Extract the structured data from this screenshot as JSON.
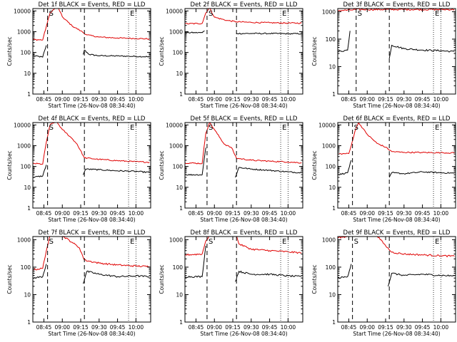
{
  "colors": {
    "events": "#000000",
    "lld": "#e00000",
    "axis": "#000000",
    "background": "#ffffff"
  },
  "markers": {
    "start_label": "S",
    "end_label": "E"
  },
  "chart_data": [
    {
      "type": "line",
      "title": "Det 1f BLACK = Events, RED = LLD",
      "xlabel": "Start Time (26-Nov-08 08:34:40)",
      "ylabel": "Counts/sec",
      "yscale": "log",
      "ylim": [
        1,
        13000
      ],
      "xlim": [
        "08:36",
        "10:12"
      ],
      "xtick_labels": [
        "08:45",
        "09:00",
        "09:15",
        "09:30",
        "09:45",
        "10:00"
      ],
      "ytick_labels": [
        "1",
        "10",
        "100",
        "1000",
        "10000"
      ],
      "vlines_dashed": [
        "08:48",
        "09:18"
      ],
      "vlines_dotted": [
        "09:54",
        "10:00"
      ],
      "series": [
        {
          "name": "Events",
          "x": [
            "08:36",
            "08:44",
            "08:47",
            "08:47",
            "09:17",
            "09:17",
            "09:18",
            "09:22",
            "09:30",
            "09:45",
            "10:00",
            "10:11"
          ],
          "y": [
            70,
            60,
            220,
            null,
            null,
            80,
            130,
            80,
            70,
            68,
            65,
            62
          ]
        },
        {
          "name": "LLD",
          "x": [
            "08:36",
            "08:44",
            "08:47",
            "08:50",
            "08:55",
            "08:57",
            "09:00",
            "09:08",
            "09:15",
            "09:20",
            "09:30",
            "09:45",
            "10:00",
            "10:11"
          ],
          "y": [
            420,
            400,
            1800,
            8000,
            15000,
            13000,
            5200,
            1900,
            1100,
            700,
            550,
            500,
            470,
            450
          ]
        }
      ]
    },
    {
      "type": "line",
      "title": "Det 2f BLACK = Events, RED = LLD",
      "xlabel": "Start Time (26-Nov-08 08:34:40)",
      "ylabel": "Counts/sec",
      "yscale": "log",
      "ylim": [
        1,
        13000
      ],
      "xlim": [
        "08:36",
        "10:12"
      ],
      "xtick_labels": [
        "08:45",
        "09:00",
        "09:15",
        "09:30",
        "09:45",
        "10:00"
      ],
      "ytick_labels": [
        "1",
        "10",
        "100",
        "1000",
        "10000"
      ],
      "vlines_dashed": [
        "08:54",
        "09:18"
      ],
      "vlines_dotted": [
        "09:54",
        "10:00"
      ],
      "series": [
        {
          "name": "Events",
          "x": [
            "08:36",
            "08:50",
            "08:52",
            "08:52",
            "09:18",
            "09:18",
            "09:30",
            "09:45",
            "10:00",
            "10:11"
          ],
          "y": [
            900,
            900,
            1100,
            null,
            null,
            820,
            820,
            820,
            800,
            800
          ]
        },
        {
          "name": "LLD",
          "x": [
            "08:36",
            "08:50",
            "08:53",
            "08:56",
            "09:00",
            "09:10",
            "09:18",
            "09:30",
            "09:45",
            "10:00",
            "10:11"
          ],
          "y": [
            2400,
            2500,
            8000,
            14000,
            5000,
            3500,
            3000,
            2800,
            2700,
            2600,
            2600
          ]
        }
      ]
    },
    {
      "type": "line",
      "title": "Det 3f BLACK = Events, RED = LLD",
      "xlabel": "Start Time (26-Nov-08 08:34:40)",
      "ylabel": "Counts/sec",
      "yscale": "log",
      "ylim": [
        1,
        1300
      ],
      "xlim": [
        "08:36",
        "10:12"
      ],
      "xtick_labels": [
        "08:45",
        "09:00",
        "09:15",
        "09:30",
        "09:45",
        "10:00"
      ],
      "ytick_labels": [
        "1",
        "10",
        "100",
        "1000"
      ],
      "vlines_dashed": [
        "08:51",
        "09:18"
      ],
      "vlines_dotted": [
        "09:54",
        "10:00"
      ],
      "series": [
        {
          "name": "Events",
          "x": [
            "08:36",
            "08:44",
            "08:46",
            "08:46",
            "09:18",
            "09:18",
            "09:20",
            "09:30",
            "09:45",
            "10:00",
            "10:11"
          ],
          "y": [
            35,
            40,
            200,
            null,
            null,
            20,
            60,
            45,
            40,
            38,
            35
          ]
        },
        {
          "name": "LLD",
          "x": [
            "08:36",
            "08:47",
            "08:50",
            "09:00",
            "09:30",
            "10:00",
            "10:11"
          ],
          "y": [
            1100,
            1150,
            1200,
            1200,
            1200,
            1200,
            1200
          ]
        }
      ]
    },
    {
      "type": "line",
      "title": "Det 4f BLACK = Events, RED = LLD",
      "xlabel": "Start Time (26-Nov-08 08:34:40)",
      "ylabel": "Counts/sec",
      "yscale": "log",
      "ylim": [
        1,
        13000
      ],
      "xlim": [
        "08:36",
        "10:12"
      ],
      "xtick_labels": [
        "08:45",
        "09:00",
        "09:15",
        "09:30",
        "09:45",
        "10:00"
      ],
      "ytick_labels": [
        "1",
        "10",
        "100",
        "1000",
        "10000"
      ],
      "vlines_dashed": [
        "08:48",
        "09:18"
      ],
      "vlines_dotted": [
        "09:54",
        "10:00"
      ],
      "series": [
        {
          "name": "Events",
          "x": [
            "08:36",
            "08:44",
            "08:47",
            "08:47",
            "09:17",
            "09:17",
            "09:19",
            "09:30",
            "09:45",
            "10:00",
            "10:11"
          ],
          "y": [
            30,
            35,
            120,
            null,
            null,
            40,
            75,
            70,
            62,
            58,
            52
          ]
        },
        {
          "name": "LLD",
          "x": [
            "08:36",
            "08:44",
            "08:47",
            "08:50",
            "08:55",
            "09:00",
            "09:08",
            "09:12",
            "09:18",
            "09:30",
            "09:45",
            "10:00",
            "10:11"
          ],
          "y": [
            140,
            130,
            1500,
            10000,
            15000,
            6000,
            2200,
            1200,
            260,
            220,
            190,
            170,
            160
          ]
        }
      ]
    },
    {
      "type": "line",
      "title": "Det 5f BLACK = Events, RED = LLD",
      "xlabel": "Start Time (26-Nov-08 08:34:40)",
      "ylabel": "Counts/sec",
      "yscale": "log",
      "ylim": [
        1,
        13000
      ],
      "xlim": [
        "08:36",
        "10:12"
      ],
      "xtick_labels": [
        "08:45",
        "09:00",
        "09:15",
        "09:30",
        "09:45",
        "10:00"
      ],
      "ytick_labels": [
        "1",
        "10",
        "100",
        "1000",
        "10000"
      ],
      "vlines_dashed": [
        "08:54",
        "09:18"
      ],
      "vlines_dotted": [
        "09:54",
        "10:00"
      ],
      "series": [
        {
          "name": "Events",
          "x": [
            "08:36",
            "08:50",
            "08:53",
            "08:53",
            "09:17",
            "09:17",
            "09:20",
            "09:30",
            "09:45",
            "10:00",
            "10:11"
          ],
          "y": [
            40,
            40,
            800,
            null,
            null,
            30,
            90,
            75,
            65,
            55,
            50
          ]
        },
        {
          "name": "LLD",
          "x": [
            "08:36",
            "08:50",
            "08:53",
            "08:56",
            "09:00",
            "09:08",
            "09:14",
            "09:18",
            "09:30",
            "09:45",
            "10:00",
            "10:11"
          ],
          "y": [
            150,
            140,
            4000,
            13000,
            6000,
            1200,
            800,
            250,
            200,
            180,
            165,
            150
          ]
        }
      ]
    },
    {
      "type": "line",
      "title": "Det 6f BLACK = Events, RED = LLD",
      "xlabel": "Start Time (26-Nov-08 08:34:40)",
      "ylabel": "Counts/sec",
      "yscale": "log",
      "ylim": [
        1,
        13000
      ],
      "xlim": [
        "08:36",
        "10:12"
      ],
      "xtick_labels": [
        "08:45",
        "09:00",
        "09:15",
        "09:30",
        "09:45",
        "10:00"
      ],
      "ytick_labels": [
        "1",
        "10",
        "100",
        "1000",
        "10000"
      ],
      "vlines_dashed": [
        "08:48",
        "09:18"
      ],
      "vlines_dotted": [
        "09:54",
        "10:00"
      ],
      "series": [
        {
          "name": "Events",
          "x": [
            "08:36",
            "08:44",
            "08:47",
            "08:47",
            "09:18",
            "09:18",
            "09:20",
            "09:30",
            "09:45",
            "10:00",
            "10:11"
          ],
          "y": [
            40,
            50,
            200,
            null,
            null,
            30,
            50,
            45,
            55,
            50,
            48
          ]
        },
        {
          "name": "LLD",
          "x": [
            "08:36",
            "08:45",
            "08:47",
            "08:50",
            "08:53",
            "09:00",
            "09:08",
            "09:15",
            "09:20",
            "09:30",
            "09:45",
            "10:00",
            "10:11"
          ],
          "y": [
            400,
            420,
            1000,
            5000,
            13000,
            3500,
            1300,
            850,
            520,
            480,
            470,
            460,
            450
          ]
        }
      ]
    },
    {
      "type": "line",
      "title": "Det 7f BLACK = Events, RED = LLD",
      "xlabel": "Start Time (26-Nov-08 08:34:40)",
      "ylabel": "Counts/sec",
      "yscale": "log",
      "ylim": [
        1,
        1300
      ],
      "xlim": [
        "08:36",
        "10:12"
      ],
      "xtick_labels": [
        "08:45",
        "09:00",
        "09:15",
        "09:30",
        "09:45",
        "10:00"
      ],
      "ytick_labels": [
        "1",
        "10",
        "100",
        "1000"
      ],
      "vlines_dashed": [
        "08:48",
        "09:18"
      ],
      "vlines_dotted": [
        "09:54",
        "10:00"
      ],
      "series": [
        {
          "name": "Events",
          "x": [
            "08:36",
            "08:44",
            "08:47",
            "08:47",
            "09:17",
            "09:17",
            "09:20",
            "09:30",
            "09:45",
            "10:00",
            "10:11"
          ],
          "y": [
            40,
            45,
            130,
            null,
            null,
            25,
            70,
            55,
            45,
            48,
            45
          ]
        },
        {
          "name": "LLD",
          "x": [
            "08:36",
            "08:44",
            "08:47",
            "08:50",
            "08:55",
            "09:00",
            "09:08",
            "09:14",
            "09:18",
            "09:30",
            "09:45",
            "10:00",
            "10:11"
          ],
          "y": [
            80,
            90,
            400,
            1400,
            1500,
            1400,
            800,
            500,
            180,
            140,
            120,
            110,
            105
          ]
        }
      ]
    },
    {
      "type": "line",
      "title": "Det 8f BLACK = Events, RED = LLD",
      "xlabel": "Start Time (26-Nov-08 08:34:40)",
      "ylabel": "Counts/sec",
      "yscale": "log",
      "ylim": [
        1,
        1300
      ],
      "xlim": [
        "08:36",
        "10:12"
      ],
      "xtick_labels": [
        "08:45",
        "09:00",
        "09:15",
        "09:30",
        "09:45",
        "10:00"
      ],
      "ytick_labels": [
        "1",
        "10",
        "100",
        "1000"
      ],
      "vlines_dashed": [
        "08:54",
        "09:18"
      ],
      "vlines_dotted": [
        "09:54",
        "10:00"
      ],
      "series": [
        {
          "name": "Events",
          "x": [
            "08:36",
            "08:50",
            "08:53",
            "08:53",
            "09:17",
            "09:17",
            "09:20",
            "09:30",
            "09:45",
            "10:00",
            "10:11"
          ],
          "y": [
            45,
            45,
            600,
            null,
            null,
            30,
            70,
            55,
            55,
            48,
            45
          ]
        },
        {
          "name": "LLD",
          "x": [
            "08:36",
            "08:50",
            "08:53",
            "08:56",
            "09:00",
            "09:10",
            "09:18",
            "09:20",
            "09:30",
            "09:45",
            "10:00",
            "10:11"
          ],
          "y": [
            280,
            300,
            900,
            1400,
            1400,
            1400,
            1400,
            700,
            450,
            400,
            360,
            330
          ]
        }
      ]
    },
    {
      "type": "line",
      "title": "Det 9f BLACK = Events, RED = LLD",
      "xlabel": "Start Time (26-Nov-08 08:34:40)",
      "ylabel": "Counts/sec",
      "yscale": "log",
      "ylim": [
        1,
        1300
      ],
      "xlim": [
        "08:36",
        "10:12"
      ],
      "xtick_labels": [
        "08:45",
        "09:00",
        "09:15",
        "09:30",
        "09:45",
        "10:00"
      ],
      "ytick_labels": [
        "1",
        "10",
        "100",
        "1000"
      ],
      "vlines_dashed": [
        "08:48",
        "09:18"
      ],
      "vlines_dotted": [
        "09:54",
        "10:00"
      ],
      "series": [
        {
          "name": "Events",
          "x": [
            "08:36",
            "08:44",
            "08:47",
            "08:47",
            "09:17",
            "09:17",
            "09:20",
            "09:30",
            "09:45",
            "10:00",
            "10:11"
          ],
          "y": [
            40,
            45,
            130,
            null,
            null,
            20,
            60,
            50,
            55,
            50,
            48
          ]
        },
        {
          "name": "LLD",
          "x": [
            "08:36",
            "08:44",
            "08:46",
            "08:50",
            "09:00",
            "09:08",
            "09:15",
            "09:20",
            "09:30",
            "09:45",
            "10:00",
            "10:11"
          ],
          "y": [
            1200,
            1300,
            1400,
            1400,
            1400,
            1400,
            600,
            350,
            300,
            280,
            260,
            250
          ]
        }
      ]
    }
  ]
}
